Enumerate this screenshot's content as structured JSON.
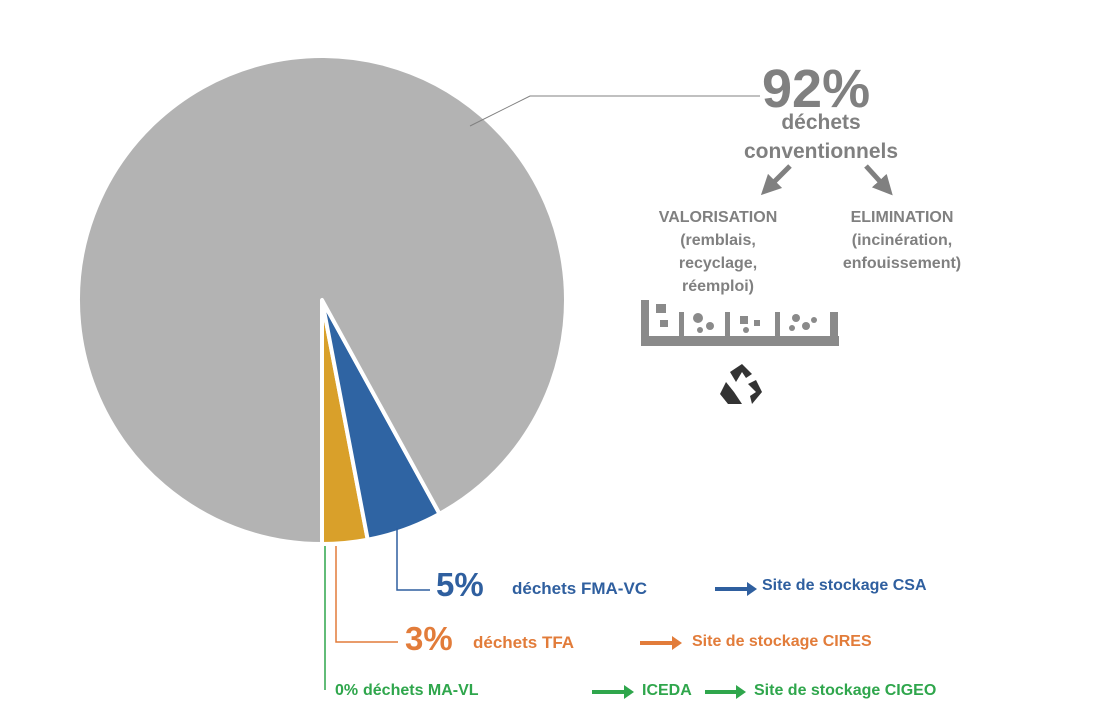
{
  "chart_data": {
    "type": "pie",
    "categories": [
      "déchets conventionnels",
      "déchets FMA-VC",
      "déchets TFA",
      "déchets MA-VL"
    ],
    "values": [
      92,
      5,
      3,
      0
    ],
    "value_labels": [
      "92%",
      "5%",
      "3%",
      "0%"
    ],
    "colors": [
      "#b3b3b3",
      "#2f64a3",
      "#d9a02a",
      "#2fa64c"
    ],
    "annotations": {
      "valorisation": {
        "title": "VALORISATION",
        "detail": "(remblais, recyclage, réemploi)"
      },
      "elimination": {
        "title": "ELIMINATION",
        "detail": "(incinération, enfouissement)"
      }
    },
    "destinations": {
      "fma_vc": [
        "Site de stockage CSA"
      ],
      "tfa": [
        "Site de stockage CIRES"
      ],
      "ma_vl": [
        "ICEDA",
        "Site de stockage CIGEO"
      ]
    }
  }
}
